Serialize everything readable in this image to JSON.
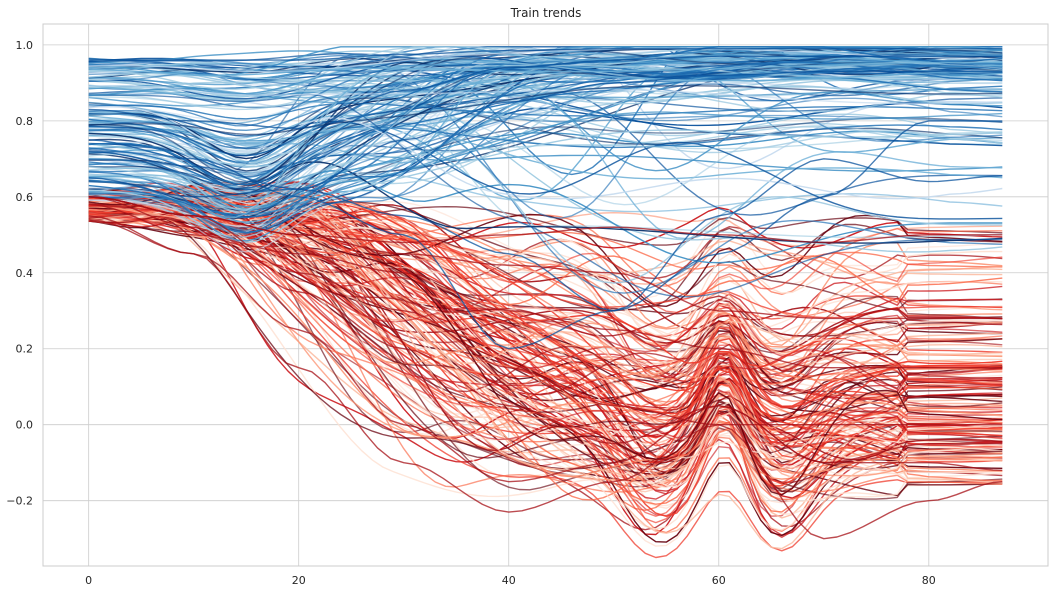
{
  "chart_data": {
    "type": "line",
    "title": "Train trends",
    "xlabel": "",
    "ylabel": "",
    "xlim": [
      -4.35,
      91.35
    ],
    "ylim": [
      -0.372,
      1.055
    ],
    "xticks": [
      0,
      20,
      40,
      60,
      80
    ],
    "yticks": [
      -0.2,
      0.0,
      0.2,
      0.4,
      0.6,
      0.8,
      1.0
    ],
    "xtick_labels": [
      "0",
      "20",
      "40",
      "60",
      "80"
    ],
    "ytick_labels": [
      "−0.2",
      "0.0",
      "0.2",
      "0.4",
      "0.6",
      "0.8",
      "1.0"
    ],
    "grid": true,
    "legend": "none",
    "x_range": [
      0,
      87
    ],
    "colormaps": {
      "blue_group": [
        "#c6dbef",
        "#9ecae1",
        "#6baed6",
        "#4292c6",
        "#2171b5",
        "#08519c",
        "#08306b"
      ],
      "red_group": [
        "#fee0d2",
        "#fcbba1",
        "#fc9272",
        "#fb6a4a",
        "#ef3b2c",
        "#cb181d",
        "#a50f15",
        "#67000d"
      ]
    },
    "representative_series": [
      {
        "group": "blue",
        "x": [
          0,
          10,
          20,
          30,
          40,
          50,
          60,
          70,
          80,
          87
        ],
        "y": [
          0.96,
          0.96,
          0.96,
          0.975,
          0.985,
          0.99,
          0.99,
          0.99,
          0.99,
          0.99
        ]
      },
      {
        "group": "blue",
        "x": [
          0,
          10,
          20,
          30,
          40,
          50,
          60,
          70,
          80,
          87
        ],
        "y": [
          0.83,
          0.8,
          0.78,
          0.88,
          0.94,
          0.96,
          0.97,
          0.97,
          0.97,
          0.97
        ]
      },
      {
        "group": "blue",
        "x": [
          0,
          10,
          20,
          30,
          40,
          50,
          60,
          70,
          80,
          87
        ],
        "y": [
          0.65,
          0.6,
          0.62,
          0.75,
          0.85,
          0.9,
          0.92,
          0.93,
          0.93,
          0.93
        ]
      },
      {
        "group": "blue",
        "x": [
          0,
          10,
          20,
          30,
          40,
          50,
          60,
          70,
          80,
          87
        ],
        "y": [
          0.72,
          0.68,
          0.62,
          0.55,
          0.45,
          0.3,
          0.45,
          0.6,
          0.8,
          0.8
        ]
      },
      {
        "group": "blue",
        "x": [
          0,
          10,
          20,
          30,
          40,
          50,
          60,
          70,
          80,
          87
        ],
        "y": [
          0.75,
          0.7,
          0.6,
          0.5,
          0.2,
          0.3,
          0.55,
          0.7,
          0.64,
          0.655
        ]
      },
      {
        "group": "red",
        "x": [
          0,
          10,
          20,
          30,
          40,
          50,
          60,
          70,
          80,
          87
        ],
        "y": [
          0.6,
          0.55,
          0.4,
          0.3,
          0.15,
          0.05,
          0.0,
          0.0,
          0.0,
          0.0
        ]
      },
      {
        "group": "red",
        "x": [
          0,
          10,
          20,
          30,
          40,
          50,
          60,
          70,
          80,
          87
        ],
        "y": [
          0.55,
          0.45,
          0.25,
          0.0,
          -0.15,
          -0.1,
          0.05,
          -0.1,
          -0.05,
          -0.05
        ]
      },
      {
        "group": "red",
        "x": [
          0,
          10,
          20,
          30,
          40,
          50,
          60,
          70,
          80,
          87
        ],
        "y": [
          0.54,
          0.45,
          0.15,
          -0.1,
          -0.23,
          -0.15,
          0.0,
          -0.3,
          -0.2,
          -0.15
        ]
      },
      {
        "group": "red",
        "x": [
          0,
          10,
          20,
          30,
          40,
          50,
          60,
          70,
          80,
          87
        ],
        "y": [
          0.6,
          0.52,
          0.35,
          0.2,
          0.05,
          -0.05,
          0.05,
          -0.1,
          -0.1,
          -0.12
        ]
      },
      {
        "group": "red",
        "x": [
          0,
          10,
          20,
          30,
          40,
          50,
          60,
          70,
          80,
          87
        ],
        "y": [
          0.58,
          0.5,
          0.45,
          0.4,
          0.3,
          0.25,
          0.2,
          0.15,
          0.15,
          0.15
        ]
      },
      {
        "group": "red",
        "x": [
          0,
          10,
          20,
          30,
          40,
          50,
          60,
          70,
          80,
          87
        ],
        "y": [
          0.6,
          0.55,
          0.5,
          0.45,
          0.42,
          0.4,
          0.3,
          0.28,
          0.28,
          0.28
        ]
      },
      {
        "group": "red",
        "x": [
          0,
          10,
          20,
          30,
          40,
          50,
          60,
          70,
          80,
          87
        ],
        "y": [
          0.6,
          0.55,
          0.5,
          0.48,
          0.5,
          0.52,
          0.5,
          0.48,
          0.5,
          0.5
        ]
      }
    ]
  }
}
